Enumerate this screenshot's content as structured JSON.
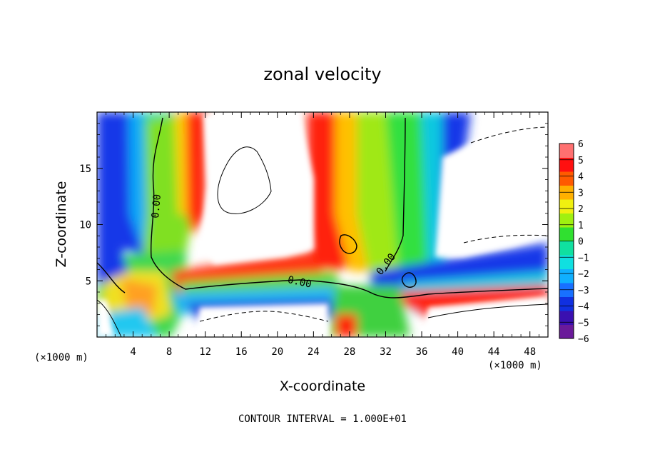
{
  "chart_data": {
    "type": "heatmap",
    "title": "zonal velocity",
    "xlabel": "X-coordinate",
    "ylabel": "Z-coordinate",
    "x_units": "(×1000 m)",
    "footnote": "CONTOUR INTERVAL = 1.000E+01",
    "xlim": [
      0,
      50
    ],
    "ylim": [
      0,
      20
    ],
    "x_ticks": [
      4,
      8,
      12,
      16,
      20,
      24,
      28,
      32,
      36,
      40,
      44,
      48
    ],
    "y_ticks": [
      5,
      10,
      15
    ],
    "colorbar": {
      "levels": [
        -6,
        -5,
        -4,
        -3,
        -2,
        -1,
        0,
        1,
        2,
        3,
        4,
        5,
        6
      ],
      "labels": [
        "6",
        "5",
        "4",
        "3",
        "2",
        "1",
        "0",
        "−1",
        "−2",
        "−3",
        "−4",
        "−5",
        "−6"
      ],
      "colors": [
        "#6a1a9a",
        "#3a10b0",
        "#1030e0",
        "#1870ff",
        "#10b0ff",
        "#10e0e0",
        "#10e0a0",
        "#30e030",
        "#a0f010",
        "#f0f010",
        "#ffb000",
        "#ff5a00",
        "#ff1010",
        "#ff7070"
      ]
    },
    "contour_labels": [
      "0.00",
      "0.00",
      "0.00"
    ]
  }
}
